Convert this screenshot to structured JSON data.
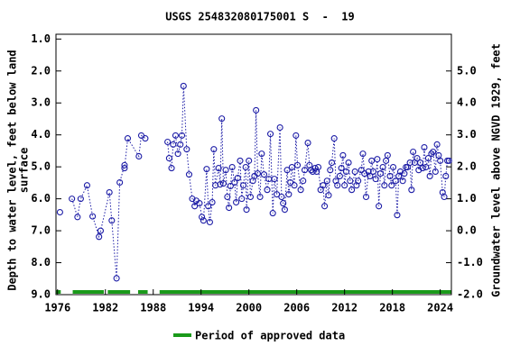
{
  "chart_data": {
    "type": "scatter",
    "title": "USGS 254832080175001 S  -  19",
    "ylabel": [
      "Depth to water level, feet below land",
      "surface"
    ],
    "y2label": "Groundwater level above NGVD 1929, feet",
    "xlim": [
      1975.8,
      2025.4
    ],
    "xticks": [
      1976,
      1982,
      1988,
      1994,
      2000,
      2006,
      2012,
      2018,
      2024
    ],
    "ylim": [
      9.0,
      0.85
    ],
    "yticks": [
      {
        "value": 1,
        "label": "1.0"
      },
      {
        "value": 2,
        "label": "2.0"
      },
      {
        "value": 3,
        "label": "3.0"
      },
      {
        "value": 4,
        "label": "4.0"
      },
      {
        "value": 5,
        "label": "5.0"
      },
      {
        "value": 6,
        "label": "6.0"
      },
      {
        "value": 7,
        "label": "7.0"
      },
      {
        "value": 8,
        "label": "8.0"
      },
      {
        "value": 9,
        "label": "9.0"
      }
    ],
    "y2lim": [
      -2.0,
      6.15
    ],
    "y2ticks": [
      {
        "value": 5,
        "label": "5.0"
      },
      {
        "value": 4,
        "label": "4.0"
      },
      {
        "value": 3,
        "label": "3.0"
      },
      {
        "value": 2,
        "label": "2.0"
      },
      {
        "value": 1,
        "label": "1.0"
      },
      {
        "value": 0,
        "label": "0.0"
      },
      {
        "value": -1,
        "label": "-1.0"
      },
      {
        "value": -2,
        "label": "-2.0"
      }
    ],
    "series": [
      {
        "name": "Depth to water level",
        "color": "#1c1ca6",
        "x": [
          1976.3,
          null,
          1977.8,
          1978.5,
          1978.9,
          1979.7,
          1980.4,
          1981.2,
          1981.4,
          1982.5,
          1982.8,
          1983.4,
          1983.8,
          1984.4,
          1984.4,
          1984.8,
          1986.2,
          1986.5,
          1987.0,
          null,
          1989.8,
          1990.0,
          1990.3,
          1990.5,
          1990.8,
          1991.1,
          1991.4,
          1991.6,
          1991.8,
          1992.2,
          1992.5,
          1992.9,
          1993.2,
          1993.4,
          1993.8,
          1994.1,
          1994.3,
          1994.7,
          1994.9,
          1995.1,
          1995.4,
          1995.6,
          1995.8,
          1996.2,
          1996.4,
          1996.6,
          1996.8,
          1997.1,
          1997.3,
          1997.5,
          1997.7,
          1997.9,
          1998.2,
          1998.4,
          1998.6,
          1998.9,
          1999.1,
          1999.3,
          1999.6,
          1999.7,
          2000.0,
          2000.2,
          2000.5,
          2000.7,
          2000.9,
          2001.1,
          2001.4,
          2001.6,
          2001.9,
          2002.3,
          2002.5,
          2002.7,
          2003.0,
          2003.2,
          2003.5,
          2003.9,
          2004.1,
          2004.3,
          2004.5,
          2004.8,
          2005.0,
          2005.2,
          2005.4,
          2005.7,
          2005.9,
          2006.1,
          2006.5,
          2006.8,
          2007.0,
          2007.4,
          2007.6,
          2007.8,
          2008.0,
          2008.3,
          2008.5,
          2008.7,
          2009.0,
          2009.3,
          2009.5,
          2009.8,
          2010.0,
          2010.2,
          2010.4,
          2010.7,
          2010.9,
          2011.1,
          2011.4,
          2011.6,
          2011.8,
          2012.0,
          2012.2,
          2012.5,
          2012.7,
          2012.9,
          2013.3,
          2013.5,
          2013.7,
          2014.1,
          2014.3,
          2014.5,
          2014.7,
          2015.0,
          2015.2,
          2015.4,
          2015.6,
          2015.9,
          2016.1,
          2016.3,
          2016.5,
          2016.8,
          2017.0,
          2017.2,
          2017.4,
          2017.7,
          2017.9,
          2018.1,
          2018.4,
          2018.6,
          2018.8,
          2019.0,
          2019.3,
          2019.5,
          2019.7,
          2019.9,
          2020.2,
          2020.4,
          2020.6,
          2020.8,
          2021.1,
          2021.3,
          2021.5,
          2021.8,
          2022.0,
          2022.2,
          2022.5,
          2022.7,
          2022.9,
          2023.1,
          2023.4,
          2023.6,
          2023.8,
          2024.0,
          2024.3,
          2024.5,
          2024.7,
          2024.9,
          2025.1
        ],
        "values": [
          6.42,
          null,
          6.0,
          6.57,
          6.0,
          5.58,
          6.55,
          7.19,
          7.0,
          5.8,
          6.68,
          8.49,
          5.49,
          4.95,
          5.04,
          4.11,
          4.67,
          4.02,
          4.11,
          null,
          4.22,
          4.73,
          5.04,
          4.3,
          4.02,
          4.59,
          4.3,
          4.02,
          2.47,
          4.45,
          5.24,
          6.0,
          6.23,
          6.06,
          6.14,
          6.57,
          6.68,
          5.07,
          6.23,
          6.73,
          6.11,
          4.45,
          5.58,
          5.04,
          5.55,
          3.49,
          5.52,
          5.1,
          5.94,
          6.28,
          5.6,
          5.01,
          5.49,
          6.11,
          5.35,
          4.81,
          6.0,
          5.58,
          5.01,
          6.34,
          4.81,
          5.94,
          5.44,
          5.29,
          3.23,
          5.21,
          5.94,
          4.59,
          5.24,
          5.72,
          5.38,
          3.97,
          6.45,
          5.38,
          5.86,
          3.77,
          5.94,
          6.14,
          6.34,
          5.1,
          5.86,
          5.49,
          5.01,
          5.58,
          4.02,
          4.95,
          5.72,
          5.44,
          5.1,
          4.25,
          4.95,
          5.1,
          5.15,
          5.04,
          5.15,
          5.01,
          5.72,
          5.58,
          6.23,
          5.44,
          5.89,
          5.1,
          4.87,
          4.11,
          5.44,
          5.58,
          5.29,
          5.04,
          4.64,
          5.58,
          5.15,
          4.87,
          5.44,
          5.72,
          5.15,
          5.58,
          5.44,
          5.1,
          4.59,
          5.21,
          5.94,
          5.15,
          5.29,
          4.81,
          5.15,
          5.38,
          4.76,
          6.23,
          5.21,
          5.01,
          5.58,
          4.81,
          4.64,
          5.29,
          5.58,
          5.01,
          5.44,
          6.51,
          5.29,
          5.15,
          5.44,
          5.21,
          5.01,
          5.01,
          4.87,
          5.72,
          4.53,
          4.87,
          4.73,
          5.1,
          4.87,
          5.04,
          4.39,
          5.01,
          4.73,
          5.29,
          4.59,
          4.53,
          5.15,
          4.3,
          4.64,
          4.81,
          5.8,
          5.94,
          5.29,
          4.81,
          4.81
        ]
      }
    ],
    "approved_periods": {
      "name": "Period of approved data",
      "color": "#1a9a1a",
      "ranges": [
        [
          1975.8,
          1976.4
        ],
        [
          1977.9,
          1981.8
        ],
        [
          1982.3,
          1985.1
        ],
        [
          1986.1,
          1987.3
        ],
        [
          1988.8,
          2025.4
        ]
      ]
    }
  }
}
